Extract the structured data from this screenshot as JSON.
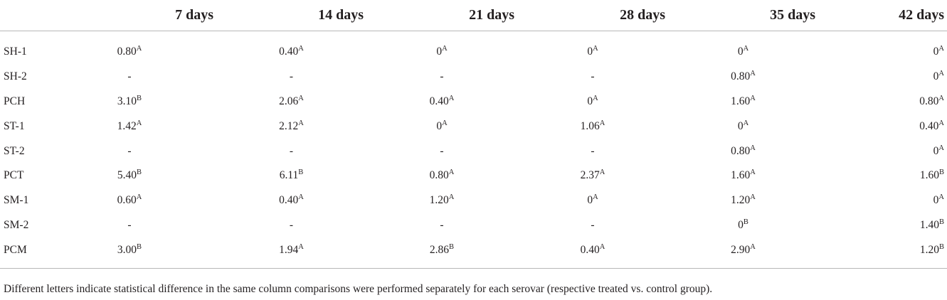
{
  "table": {
    "corner": "",
    "columns": [
      "7 days",
      "14 days",
      "21 days",
      "28 days",
      "35 days",
      "42 days"
    ],
    "rows": [
      {
        "label": "SH-1",
        "cells": [
          {
            "v": "0.80",
            "s": "A"
          },
          {
            "v": "0.40",
            "s": "A"
          },
          {
            "v": "0",
            "s": "A"
          },
          {
            "v": "0",
            "s": "A"
          },
          {
            "v": "0",
            "s": "A"
          },
          {
            "v": "0",
            "s": "A"
          }
        ]
      },
      {
        "label": "SH-2",
        "cells": [
          {
            "v": "-",
            "s": ""
          },
          {
            "v": "-",
            "s": ""
          },
          {
            "v": "-",
            "s": ""
          },
          {
            "v": "-",
            "s": ""
          },
          {
            "v": "0.80",
            "s": "A"
          },
          {
            "v": "0",
            "s": "A"
          }
        ]
      },
      {
        "label": "PCH",
        "cells": [
          {
            "v": "3.10",
            "s": "B"
          },
          {
            "v": "2.06",
            "s": "A"
          },
          {
            "v": "0.40",
            "s": "A"
          },
          {
            "v": "0",
            "s": "A"
          },
          {
            "v": "1.60",
            "s": "A"
          },
          {
            "v": "0.80",
            "s": "A"
          }
        ]
      },
      {
        "label": "ST-1",
        "cells": [
          {
            "v": "1.42",
            "s": "A"
          },
          {
            "v": "2.12",
            "s": "A"
          },
          {
            "v": "0",
            "s": "A"
          },
          {
            "v": "1.06",
            "s": "A"
          },
          {
            "v": "0",
            "s": "A"
          },
          {
            "v": "0.40",
            "s": "A"
          }
        ]
      },
      {
        "label": "ST-2",
        "cells": [
          {
            "v": "-",
            "s": ""
          },
          {
            "v": "-",
            "s": ""
          },
          {
            "v": "-",
            "s": ""
          },
          {
            "v": "-",
            "s": ""
          },
          {
            "v": "0.80",
            "s": "A"
          },
          {
            "v": "0",
            "s": "A"
          }
        ]
      },
      {
        "label": "PCT",
        "cells": [
          {
            "v": "5.40",
            "s": "B"
          },
          {
            "v": "6.11",
            "s": "B"
          },
          {
            "v": "0.80",
            "s": "A"
          },
          {
            "v": "2.37",
            "s": "A"
          },
          {
            "v": "1.60",
            "s": "A"
          },
          {
            "v": "1.60",
            "s": "B"
          }
        ]
      },
      {
        "label": "SM-1",
        "cells": [
          {
            "v": "0.60",
            "s": "A"
          },
          {
            "v": "0.40",
            "s": "A"
          },
          {
            "v": "1.20",
            "s": "A"
          },
          {
            "v": "0",
            "s": "A"
          },
          {
            "v": "1.20",
            "s": "A"
          },
          {
            "v": "0",
            "s": "A"
          }
        ]
      },
      {
        "label": "SM-2",
        "cells": [
          {
            "v": "-",
            "s": ""
          },
          {
            "v": "-",
            "s": ""
          },
          {
            "v": "-",
            "s": ""
          },
          {
            "v": "-",
            "s": ""
          },
          {
            "v": "0",
            "s": "B"
          },
          {
            "v": "1.40",
            "s": "B"
          }
        ]
      },
      {
        "label": "PCM",
        "cells": [
          {
            "v": "3.00",
            "s": "B"
          },
          {
            "v": "1.94",
            "s": "A"
          },
          {
            "v": "2.86",
            "s": "B"
          },
          {
            "v": "0.40",
            "s": "A"
          },
          {
            "v": "2.90",
            "s": "A"
          },
          {
            "v": "1.20",
            "s": "B"
          }
        ]
      }
    ]
  },
  "footnote": "Different letters indicate statistical difference in the same column comparisons were performed separately for each serovar (respective treated vs. control group)."
}
